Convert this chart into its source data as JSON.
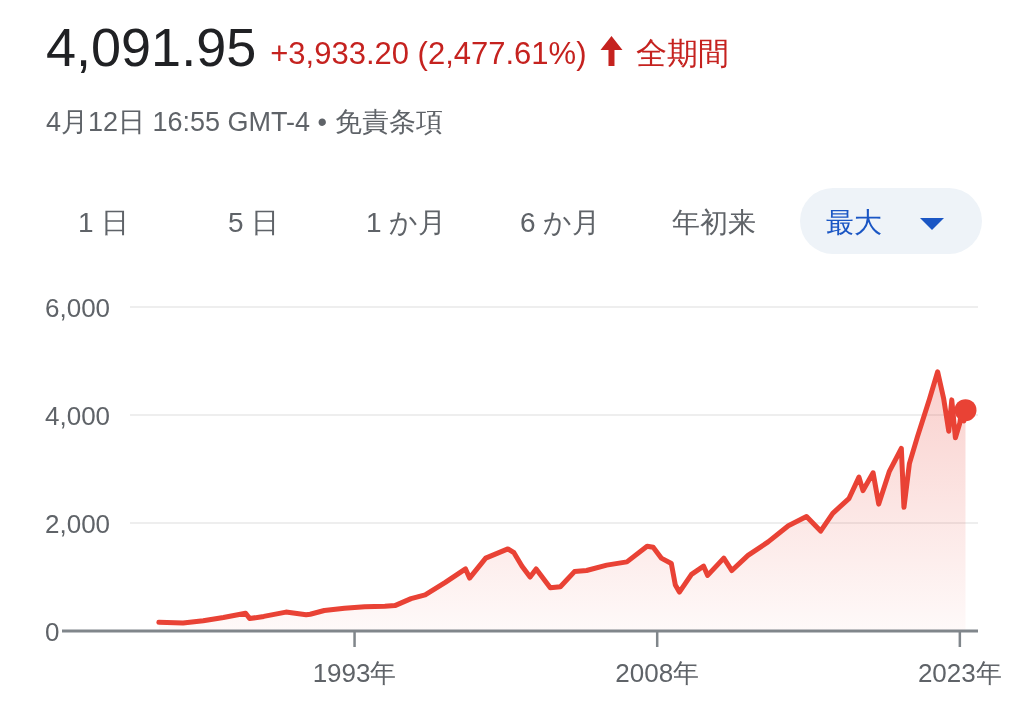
{
  "chart_data": {
    "type": "area",
    "title": "4,091.95",
    "subtitle": "+3,933.20 (2,477.61%)",
    "annotations": [
      "全期間",
      "4月12日 16:55 GMT-4 • 免責条項",
      "1 日",
      "5 日",
      "1 か月",
      "6 か月",
      "年初来",
      "最大"
    ],
    "xlim": [
      1978.5,
      2023.9
    ],
    "xticks": [
      {
        "value": 1993,
        "label": "1993年"
      },
      {
        "value": 2008,
        "label": "2008年"
      },
      {
        "value": 2023,
        "label": "2023年"
      }
    ],
    "ylim": [
      0,
      6000
    ],
    "yticks": [
      {
        "value": 0,
        "label": "0"
      },
      {
        "value": 2000,
        "label": "2,000"
      },
      {
        "value": 4000,
        "label": "4,000"
      },
      {
        "value": 6000,
        "label": "6,000"
      }
    ],
    "grid": "y",
    "series": [
      {
        "color": "#e94235",
        "x": [
          1983.3,
          1984.5,
          1985.5,
          1986.5,
          1987.6,
          1987.8,
          1988.5,
          1989.6,
          1990.6,
          1990.8,
          1991.5,
          1992.5,
          1993.5,
          1994.5,
          1995.0,
          1995.8,
          1996.5,
          1997.5,
          1998.5,
          1998.7,
          1999.5,
          2000.6,
          2000.9,
          2001.3,
          2001.7,
          2002.0,
          2002.7,
          2003.2,
          2003.9,
          2004.5,
          2005.5,
          2006.5,
          2007.5,
          2007.8,
          2008.2,
          2008.7,
          2008.9,
          2009.1,
          2009.7,
          2010.3,
          2010.5,
          2011.3,
          2011.7,
          2012.5,
          2013.5,
          2014.5,
          2015.4,
          2016.1,
          2016.7,
          2017.5,
          2018.0,
          2018.2,
          2018.7,
          2018.98,
          2019.5,
          2020.1,
          2020.23,
          2020.5,
          2020.9,
          2021.5,
          2021.9,
          2022.2,
          2022.45,
          2022.6,
          2022.78,
          2023.0,
          2023.1,
          2023.2,
          2023.28
        ],
        "values": [
          160,
          150,
          190,
          250,
          330,
          230,
          270,
          350,
          300,
          310,
          380,
          420,
          450,
          460,
          470,
          600,
          670,
          900,
          1150,
          980,
          1350,
          1520,
          1450,
          1200,
          1000,
          1150,
          800,
          820,
          1100,
          1120,
          1220,
          1280,
          1570,
          1550,
          1350,
          1250,
          850,
          720,
          1050,
          1200,
          1030,
          1350,
          1120,
          1400,
          1650,
          1950,
          2120,
          1850,
          2180,
          2450,
          2850,
          2600,
          2930,
          2350,
          2950,
          3380,
          2290,
          3100,
          3600,
          4300,
          4800,
          4300,
          3700,
          4280,
          3580,
          3850,
          4150,
          3890,
          4090
        ]
      },
      {
        "type": "scatter",
        "color": "#e94235",
        "marker": "circle",
        "x": [
          2023.28
        ],
        "values": [
          4090
        ]
      }
    ]
  }
}
